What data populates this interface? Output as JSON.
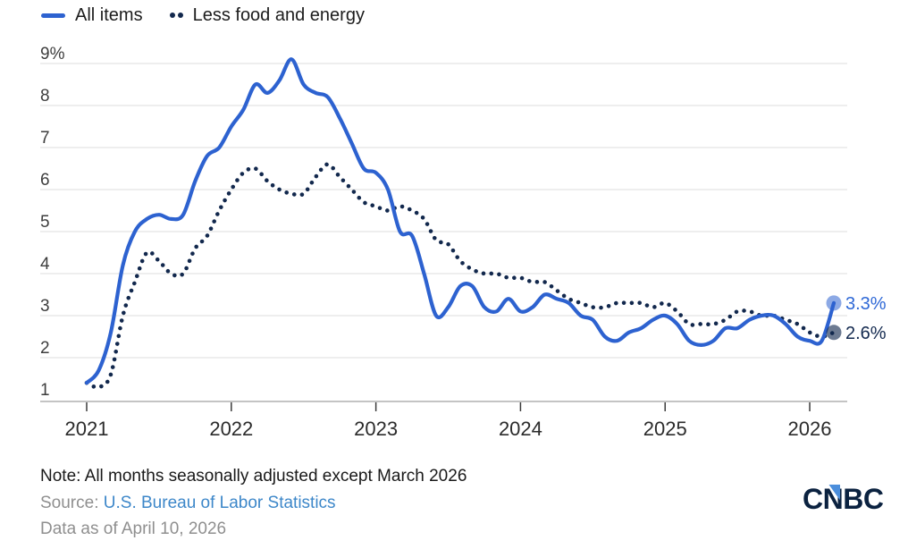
{
  "legend": [
    {
      "label": "All items",
      "swatch": "solid-line"
    },
    {
      "label": "Less food and energy",
      "swatch": "dots"
    }
  ],
  "chart_data": {
    "type": "line",
    "title": "",
    "xlabel": "",
    "ylabel": "",
    "frequency": "monthly",
    "x_start": "2021-01",
    "x_end": "2026-03",
    "x_tick_labels": [
      "2021",
      "2022",
      "2023",
      "2024",
      "2025",
      "2026"
    ],
    "y_tick_labels": [
      "9%",
      "8",
      "7",
      "6",
      "5",
      "4",
      "3",
      "2",
      "1"
    ],
    "y_tick_values": [
      9,
      8,
      7,
      6,
      5,
      4,
      3,
      2,
      1
    ],
    "ylim": [
      1,
      9
    ],
    "grid": true,
    "legend_position": "top-left",
    "units": "percent, year-over-year",
    "series": [
      {
        "name": "All items",
        "line_style": "solid",
        "end_label": "3.3%",
        "end_value": 3.3,
        "values": [
          1.4,
          1.7,
          2.6,
          4.2,
          5.0,
          5.3,
          5.4,
          5.3,
          5.4,
          6.2,
          6.8,
          7.0,
          7.5,
          7.9,
          8.5,
          8.3,
          8.6,
          9.1,
          8.5,
          8.3,
          8.2,
          7.7,
          7.1,
          6.5,
          6.4,
          6.0,
          5.0,
          4.9,
          4.0,
          3.0,
          3.2,
          3.7,
          3.7,
          3.2,
          3.1,
          3.4,
          3.1,
          3.2,
          3.5,
          3.4,
          3.3,
          3.0,
          2.9,
          2.5,
          2.4,
          2.6,
          2.7,
          2.9,
          3.0,
          2.8,
          2.4,
          2.3,
          2.4,
          2.7,
          2.7,
          2.9,
          3.0,
          3.0,
          2.8,
          2.5,
          2.4,
          2.4,
          3.3
        ]
      },
      {
        "name": "Less food and energy",
        "line_style": "dotted",
        "end_label": "2.6%",
        "end_value": 2.6,
        "values": [
          1.4,
          1.3,
          1.6,
          3.0,
          3.8,
          4.5,
          4.3,
          4.0,
          4.0,
          4.6,
          4.9,
          5.5,
          6.0,
          6.4,
          6.5,
          6.2,
          6.0,
          5.9,
          5.9,
          6.3,
          6.6,
          6.3,
          6.0,
          5.7,
          5.6,
          5.5,
          5.6,
          5.5,
          5.3,
          4.8,
          4.7,
          4.3,
          4.1,
          4.0,
          4.0,
          3.9,
          3.9,
          3.8,
          3.8,
          3.6,
          3.4,
          3.3,
          3.2,
          3.2,
          3.3,
          3.3,
          3.3,
          3.2,
          3.3,
          3.1,
          2.8,
          2.8,
          2.8,
          2.9,
          3.1,
          3.1,
          3.0,
          3.0,
          2.9,
          2.8,
          2.6,
          2.5,
          2.6
        ]
      }
    ]
  },
  "footer": {
    "note": "Note: All months seasonally adjusted except March 2026",
    "source_prefix": "Source: ",
    "source_link": "U.S. Bureau of Labor Statistics",
    "data_as_of": "Data as of April 10, 2026"
  },
  "logo": {
    "text": "CNBC"
  },
  "colors": {
    "all_items": "#2d62d0",
    "core": "#12284d",
    "all_items_marker": "rgba(45,98,208,0.55)",
    "core_marker": "rgba(18,40,77,0.62)",
    "end_label_all": "#2e68d6",
    "end_label_core": "#13294f",
    "grid": "#dcdcdc",
    "axis": "#c4c4c4",
    "tick": "#3a3a3a",
    "link": "#3d87c9",
    "logo_navy": "#0b2240",
    "logo_blue": "#4b8edc"
  }
}
